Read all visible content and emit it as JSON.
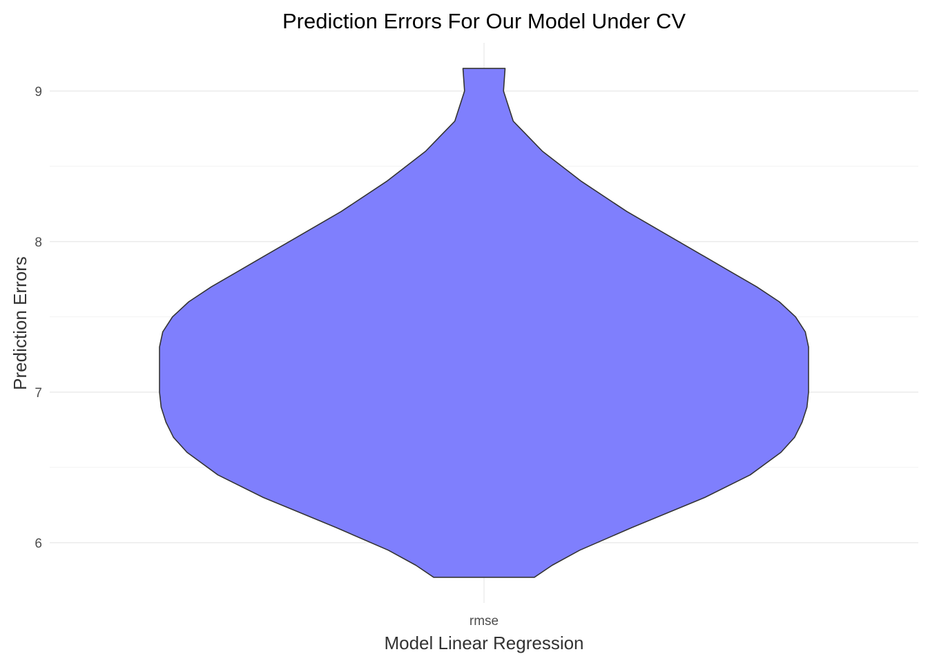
{
  "chart_data": {
    "type": "violin",
    "title": "Prediction Errors For Our Model Under CV",
    "xlabel": "Model Linear Regression",
    "ylabel": "Prediction Errors",
    "categories": [
      "rmse"
    ],
    "ylim": [
      5.6,
      9.32
    ],
    "y_ticks": [
      6,
      7,
      8,
      9
    ],
    "y_tick_labels": [
      "6",
      "7",
      "8",
      "9"
    ],
    "grid": true,
    "fill_color": "#7f7ffd",
    "outline_color": "#333333",
    "violin": {
      "category": "rmse",
      "min": 5.77,
      "max": 9.15,
      "density_profile": [
        {
          "y": 5.77,
          "relative_width": 0.155
        },
        {
          "y": 5.85,
          "relative_width": 0.21
        },
        {
          "y": 5.95,
          "relative_width": 0.295
        },
        {
          "y": 6.1,
          "relative_width": 0.455
        },
        {
          "y": 6.3,
          "relative_width": 0.68
        },
        {
          "y": 6.45,
          "relative_width": 0.82
        },
        {
          "y": 6.6,
          "relative_width": 0.915
        },
        {
          "y": 6.7,
          "relative_width": 0.957
        },
        {
          "y": 6.8,
          "relative_width": 0.98
        },
        {
          "y": 6.9,
          "relative_width": 0.995
        },
        {
          "y": 7.0,
          "relative_width": 1.0
        },
        {
          "y": 7.1,
          "relative_width": 1.0
        },
        {
          "y": 7.2,
          "relative_width": 1.0
        },
        {
          "y": 7.3,
          "relative_width": 1.0
        },
        {
          "y": 7.4,
          "relative_width": 0.99
        },
        {
          "y": 7.5,
          "relative_width": 0.96
        },
        {
          "y": 7.6,
          "relative_width": 0.91
        },
        {
          "y": 7.7,
          "relative_width": 0.84
        },
        {
          "y": 7.8,
          "relative_width": 0.76
        },
        {
          "y": 7.9,
          "relative_width": 0.68
        },
        {
          "y": 8.0,
          "relative_width": 0.6
        },
        {
          "y": 8.2,
          "relative_width": 0.44
        },
        {
          "y": 8.4,
          "relative_width": 0.3
        },
        {
          "y": 8.6,
          "relative_width": 0.18
        },
        {
          "y": 8.8,
          "relative_width": 0.09
        },
        {
          "y": 9.0,
          "relative_width": 0.06
        },
        {
          "y": 9.15,
          "relative_width": 0.065
        }
      ]
    }
  }
}
